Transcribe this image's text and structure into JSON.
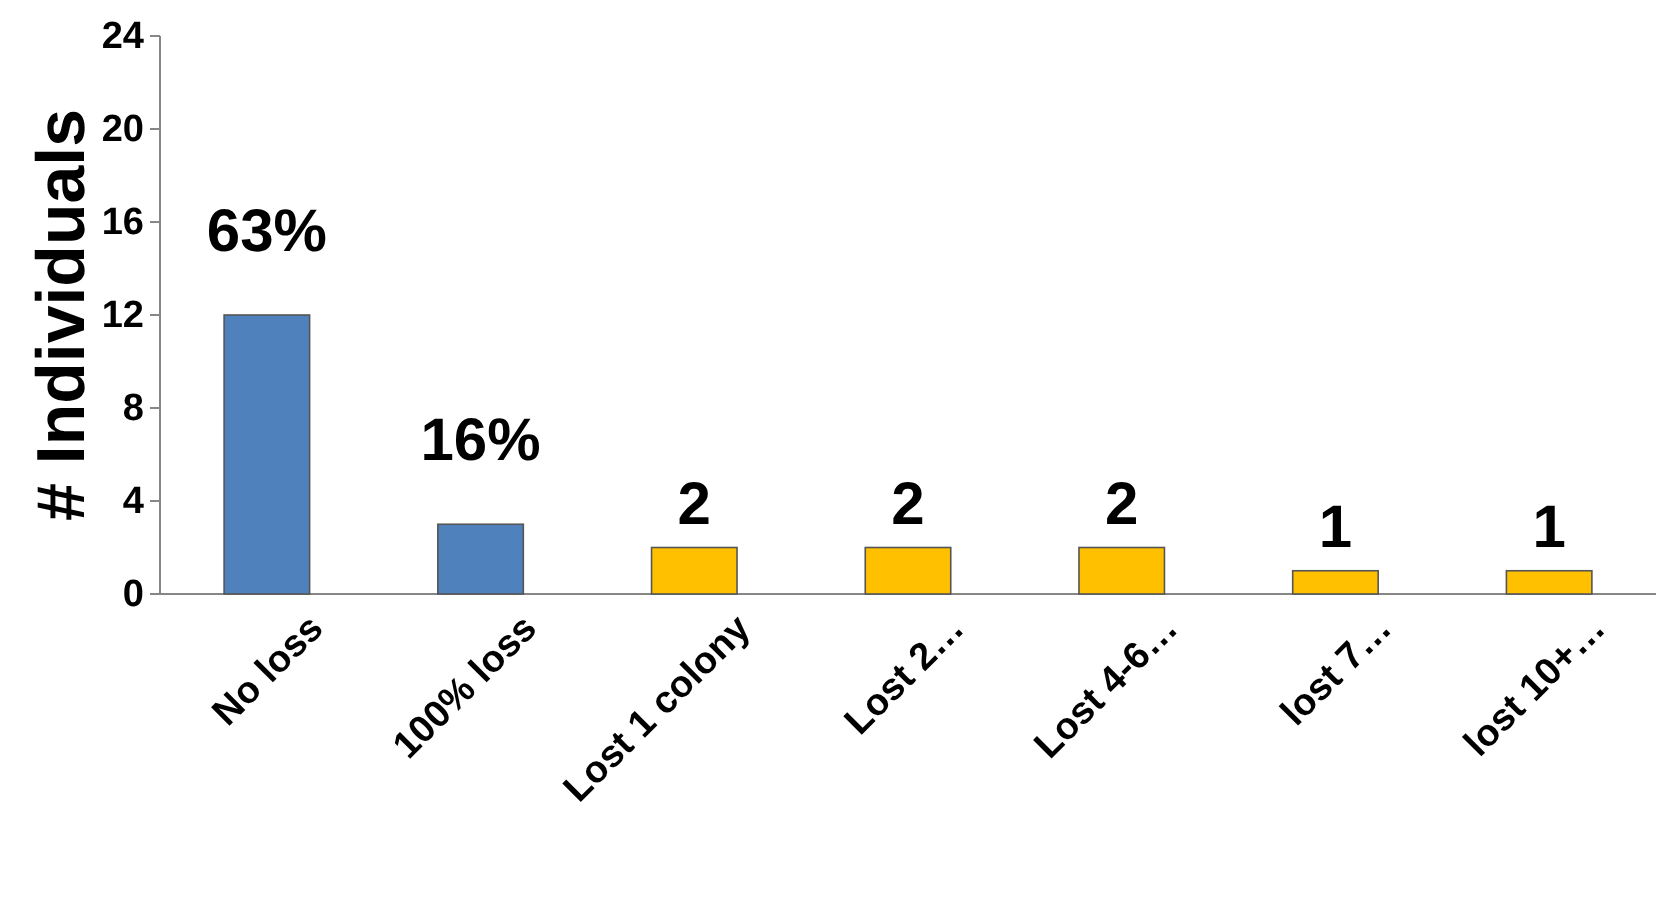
{
  "chart_data": {
    "type": "bar",
    "ylabel": "# Individuals",
    "categories": [
      "No loss",
      "100% loss",
      "Lost 1 colony",
      "Lost 2…",
      "Lost 4-6…",
      "lost 7…",
      "lost 10+…"
    ],
    "values": [
      12,
      3,
      2,
      2,
      2,
      1,
      1
    ],
    "colors": [
      "#4f81bd",
      "#4f81bd",
      "#ffc000",
      "#ffc000",
      "#ffc000",
      "#ffc000",
      "#ffc000"
    ],
    "value_labels": [
      null,
      null,
      "2",
      "2",
      "2",
      "1",
      "1"
    ],
    "annotations": [
      {
        "text": "63%",
        "x": "No loss",
        "y": 12
      },
      {
        "text": "16%",
        "x": "100% loss",
        "y": 3
      }
    ],
    "ylim": [
      0,
      24
    ],
    "yticks": [
      0,
      4,
      8,
      12,
      16,
      20,
      24
    ],
    "grid": false
  }
}
